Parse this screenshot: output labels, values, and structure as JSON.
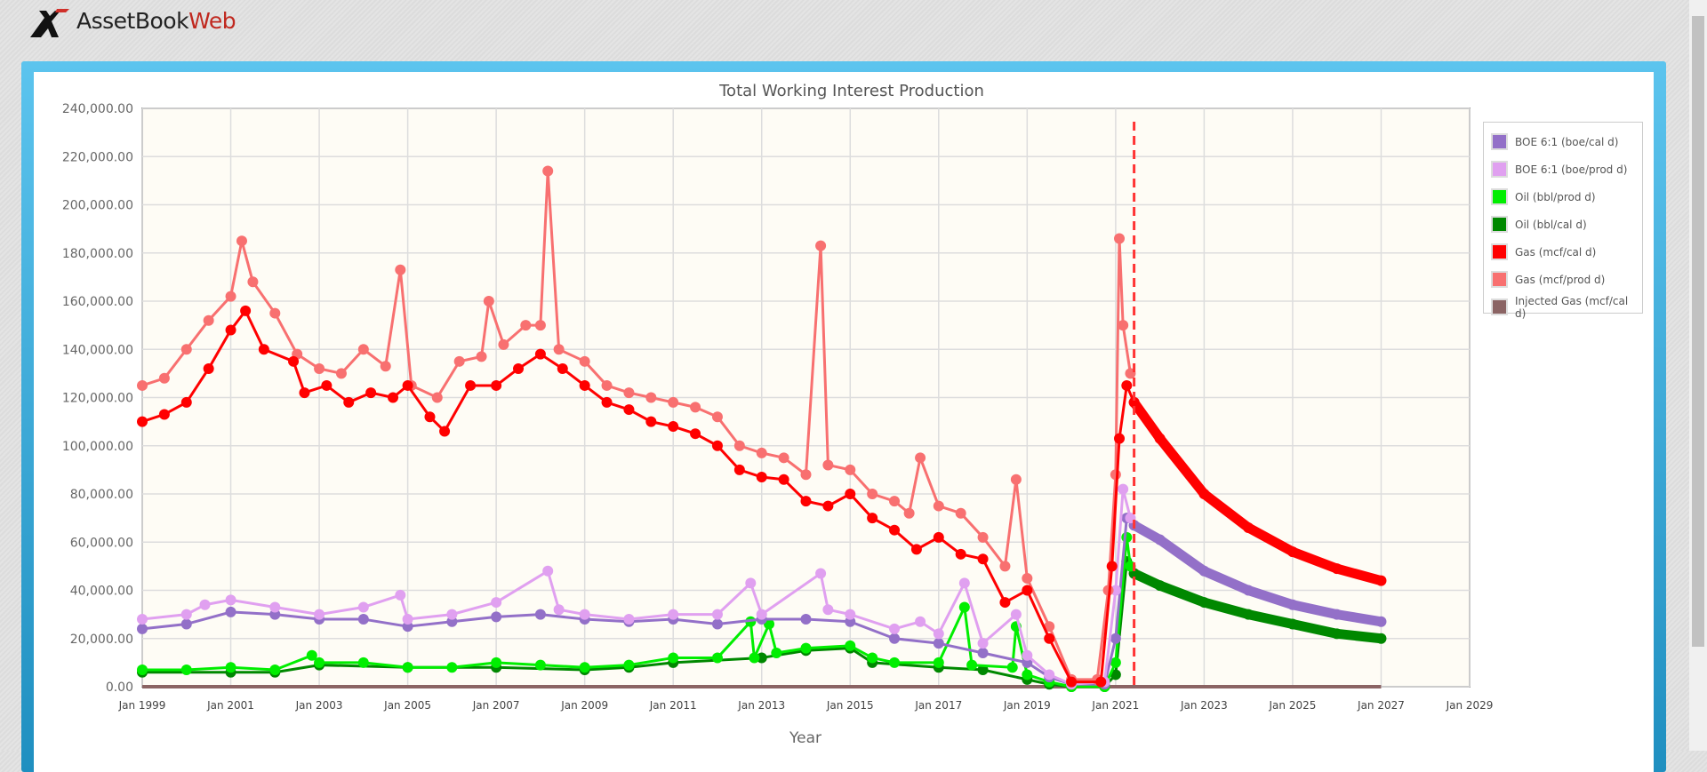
{
  "app": {
    "logo_main": "AssetBook",
    "logo_accent": "Web"
  },
  "chart_data": {
    "type": "line",
    "title": "Total Working Interest Production",
    "xlabel": "Year",
    "ylabel": "",
    "ylim": [
      0,
      240000
    ],
    "xlim": [
      "1999-01",
      "2029-01"
    ],
    "y_ticks": [
      "0.00",
      "20,000.00",
      "40,000.00",
      "60,000.00",
      "80,000.00",
      "100,000.00",
      "120,000.00",
      "140,000.00",
      "160,000.00",
      "180,000.00",
      "200,000.00",
      "220,000.00",
      "240,000.00"
    ],
    "x_ticks": [
      "Jan 1999",
      "Jan 2001",
      "Jan 2003",
      "Jan 2005",
      "Jan 2007",
      "Jan 2009",
      "Jan 2011",
      "Jan 2013",
      "Jan 2015",
      "Jan 2017",
      "Jan 2019",
      "Jan 2021",
      "Jan 2023",
      "Jan 2025",
      "Jan 2027",
      "Jan 2029"
    ],
    "grid": true,
    "legend_position": "right",
    "forecast_marker_date": "2021-06",
    "forecast_marker_color": "#ff3333",
    "series": [
      {
        "name": "BOE 6:1 (boe/cal d)",
        "color": "#9370c8",
        "values": [
          [
            "1999-01",
            24000
          ],
          [
            "2000-01",
            26000
          ],
          [
            "2001-01",
            31000
          ],
          [
            "2002-01",
            30000
          ],
          [
            "2003-01",
            28000
          ],
          [
            "2004-01",
            28000
          ],
          [
            "2005-01",
            25000
          ],
          [
            "2006-01",
            27000
          ],
          [
            "2007-01",
            29000
          ],
          [
            "2008-01",
            30000
          ],
          [
            "2009-01",
            28000
          ],
          [
            "2010-01",
            27000
          ],
          [
            "2011-01",
            28000
          ],
          [
            "2012-01",
            26000
          ],
          [
            "2013-01",
            28000
          ],
          [
            "2014-01",
            28000
          ],
          [
            "2015-01",
            27000
          ],
          [
            "2016-01",
            20000
          ],
          [
            "2017-01",
            18000
          ],
          [
            "2018-01",
            14000
          ],
          [
            "2019-01",
            10000
          ],
          [
            "2019-07",
            4000
          ],
          [
            "2020-01",
            1000
          ],
          [
            "2020-10",
            1000
          ],
          [
            "2021-01",
            20000
          ],
          [
            "2021-04",
            70000
          ],
          [
            "2021-06",
            67000
          ]
        ],
        "forecast": [
          [
            "2021-06",
            67000
          ],
          [
            "2022-01",
            61000
          ],
          [
            "2023-01",
            48000
          ],
          [
            "2024-01",
            40000
          ],
          [
            "2025-01",
            34000
          ],
          [
            "2026-01",
            30000
          ],
          [
            "2027-01",
            27000
          ]
        ]
      },
      {
        "name": "BOE 6:1 (boe/prod d)",
        "color": "#e0a0f0",
        "values": [
          [
            "1999-01",
            28000
          ],
          [
            "2000-01",
            30000
          ],
          [
            "2000-06",
            34000
          ],
          [
            "2001-01",
            36000
          ],
          [
            "2002-01",
            33000
          ],
          [
            "2003-01",
            30000
          ],
          [
            "2004-01",
            33000
          ],
          [
            "2004-11",
            38000
          ],
          [
            "2005-01",
            28000
          ],
          [
            "2006-01",
            30000
          ],
          [
            "2007-01",
            35000
          ],
          [
            "2008-03",
            48000
          ],
          [
            "2008-06",
            32000
          ],
          [
            "2009-01",
            30000
          ],
          [
            "2010-01",
            28000
          ],
          [
            "2011-01",
            30000
          ],
          [
            "2012-01",
            30000
          ],
          [
            "2012-10",
            43000
          ],
          [
            "2013-01",
            30000
          ],
          [
            "2014-05",
            47000
          ],
          [
            "2014-07",
            32000
          ],
          [
            "2015-01",
            30000
          ],
          [
            "2016-01",
            24000
          ],
          [
            "2016-08",
            27000
          ],
          [
            "2017-01",
            22000
          ],
          [
            "2017-08",
            43000
          ],
          [
            "2018-01",
            18000
          ],
          [
            "2018-10",
            30000
          ],
          [
            "2019-01",
            13000
          ],
          [
            "2019-07",
            5000
          ],
          [
            "2020-01",
            1000
          ],
          [
            "2020-10",
            2000
          ],
          [
            "2021-01",
            40000
          ],
          [
            "2021-03",
            82000
          ],
          [
            "2021-05",
            70000
          ]
        ]
      },
      {
        "name": "Oil (bbl/prod d)",
        "color": "#00ee00",
        "values": [
          [
            "1999-01",
            7000
          ],
          [
            "2000-01",
            7000
          ],
          [
            "2001-01",
            8000
          ],
          [
            "2002-01",
            7000
          ],
          [
            "2002-11",
            13000
          ],
          [
            "2003-01",
            10000
          ],
          [
            "2004-01",
            10000
          ],
          [
            "2005-01",
            8000
          ],
          [
            "2006-01",
            8000
          ],
          [
            "2007-01",
            10000
          ],
          [
            "2008-01",
            9000
          ],
          [
            "2009-01",
            8000
          ],
          [
            "2010-01",
            9000
          ],
          [
            "2011-01",
            12000
          ],
          [
            "2012-01",
            12000
          ],
          [
            "2012-10",
            27000
          ],
          [
            "2012-11",
            12000
          ],
          [
            "2013-03",
            26000
          ],
          [
            "2013-05",
            14000
          ],
          [
            "2014-01",
            16000
          ],
          [
            "2015-01",
            17000
          ],
          [
            "2015-07",
            12000
          ],
          [
            "2016-01",
            10000
          ],
          [
            "2017-01",
            10000
          ],
          [
            "2017-08",
            33000
          ],
          [
            "2017-10",
            9000
          ],
          [
            "2018-09",
            8000
          ],
          [
            "2018-10",
            25000
          ],
          [
            "2019-01",
            5000
          ],
          [
            "2019-07",
            2000
          ],
          [
            "2020-01",
            0
          ],
          [
            "2020-10",
            0
          ],
          [
            "2021-01",
            10000
          ],
          [
            "2021-04",
            62000
          ],
          [
            "2021-05",
            50000
          ]
        ]
      },
      {
        "name": "Oil (bbl/cal d)",
        "color": "#008800",
        "values": [
          [
            "1999-01",
            6000
          ],
          [
            "2001-01",
            6000
          ],
          [
            "2002-01",
            6000
          ],
          [
            "2003-01",
            9000
          ],
          [
            "2005-01",
            8000
          ],
          [
            "2007-01",
            8000
          ],
          [
            "2009-01",
            7000
          ],
          [
            "2010-01",
            8000
          ],
          [
            "2011-01",
            10000
          ],
          [
            "2013-01",
            12000
          ],
          [
            "2014-01",
            15000
          ],
          [
            "2015-01",
            16000
          ],
          [
            "2015-07",
            10000
          ],
          [
            "2017-01",
            8000
          ],
          [
            "2018-01",
            7000
          ],
          [
            "2019-01",
            3000
          ],
          [
            "2019-07",
            1000
          ],
          [
            "2020-01",
            0
          ],
          [
            "2020-10",
            0
          ],
          [
            "2021-01",
            5000
          ],
          [
            "2021-04",
            52000
          ],
          [
            "2021-06",
            47000
          ]
        ],
        "forecast": [
          [
            "2021-06",
            47000
          ],
          [
            "2022-01",
            42000
          ],
          [
            "2023-01",
            35000
          ],
          [
            "2024-01",
            30000
          ],
          [
            "2025-01",
            26000
          ],
          [
            "2026-01",
            22000
          ],
          [
            "2027-01",
            20000
          ]
        ]
      },
      {
        "name": "Gas (mcf/cal d)",
        "color": "#ff0000",
        "values": [
          [
            "1999-01",
            110000
          ],
          [
            "1999-07",
            113000
          ],
          [
            "2000-01",
            118000
          ],
          [
            "2000-07",
            132000
          ],
          [
            "2001-01",
            148000
          ],
          [
            "2001-05",
            156000
          ],
          [
            "2001-10",
            140000
          ],
          [
            "2002-06",
            135000
          ],
          [
            "2002-09",
            122000
          ],
          [
            "2003-03",
            125000
          ],
          [
            "2003-09",
            118000
          ],
          [
            "2004-03",
            122000
          ],
          [
            "2004-09",
            120000
          ],
          [
            "2005-01",
            125000
          ],
          [
            "2005-07",
            112000
          ],
          [
            "2005-11",
            106000
          ],
          [
            "2006-06",
            125000
          ],
          [
            "2007-01",
            125000
          ],
          [
            "2007-07",
            132000
          ],
          [
            "2008-01",
            138000
          ],
          [
            "2008-07",
            132000
          ],
          [
            "2009-01",
            125000
          ],
          [
            "2009-07",
            118000
          ],
          [
            "2010-01",
            115000
          ],
          [
            "2010-07",
            110000
          ],
          [
            "2011-01",
            108000
          ],
          [
            "2011-07",
            105000
          ],
          [
            "2012-01",
            100000
          ],
          [
            "2012-07",
            90000
          ],
          [
            "2013-01",
            87000
          ],
          [
            "2013-07",
            86000
          ],
          [
            "2014-01",
            77000
          ],
          [
            "2014-07",
            75000
          ],
          [
            "2015-01",
            80000
          ],
          [
            "2015-07",
            70000
          ],
          [
            "2016-01",
            65000
          ],
          [
            "2016-07",
            57000
          ],
          [
            "2017-01",
            62000
          ],
          [
            "2017-07",
            55000
          ],
          [
            "2018-01",
            53000
          ],
          [
            "2018-07",
            35000
          ],
          [
            "2019-01",
            40000
          ],
          [
            "2019-07",
            20000
          ],
          [
            "2020-01",
            2000
          ],
          [
            "2020-09",
            2000
          ],
          [
            "2020-12",
            50000
          ],
          [
            "2021-02",
            103000
          ],
          [
            "2021-04",
            125000
          ],
          [
            "2021-06",
            118000
          ]
        ],
        "forecast": [
          [
            "2021-06",
            118000
          ],
          [
            "2022-01",
            103000
          ],
          [
            "2023-01",
            80000
          ],
          [
            "2024-01",
            66000
          ],
          [
            "2025-01",
            56000
          ],
          [
            "2026-01",
            49000
          ],
          [
            "2027-01",
            44000
          ]
        ]
      },
      {
        "name": "Gas (mcf/prod d)",
        "color": "#f87070",
        "values": [
          [
            "1999-01",
            125000
          ],
          [
            "1999-07",
            128000
          ],
          [
            "2000-01",
            140000
          ],
          [
            "2000-07",
            152000
          ],
          [
            "2001-01",
            162000
          ],
          [
            "2001-04",
            185000
          ],
          [
            "2001-07",
            168000
          ],
          [
            "2002-01",
            155000
          ],
          [
            "2002-07",
            138000
          ],
          [
            "2003-01",
            132000
          ],
          [
            "2003-07",
            130000
          ],
          [
            "2004-01",
            140000
          ],
          [
            "2004-07",
            133000
          ],
          [
            "2004-11",
            173000
          ],
          [
            "2005-02",
            125000
          ],
          [
            "2005-09",
            120000
          ],
          [
            "2006-03",
            135000
          ],
          [
            "2006-09",
            137000
          ],
          [
            "2006-11",
            160000
          ],
          [
            "2007-03",
            142000
          ],
          [
            "2007-09",
            150000
          ],
          [
            "2008-01",
            150000
          ],
          [
            "2008-03",
            214000
          ],
          [
            "2008-06",
            140000
          ],
          [
            "2009-01",
            135000
          ],
          [
            "2009-07",
            125000
          ],
          [
            "2010-01",
            122000
          ],
          [
            "2010-07",
            120000
          ],
          [
            "2011-01",
            118000
          ],
          [
            "2011-07",
            116000
          ],
          [
            "2012-01",
            112000
          ],
          [
            "2012-07",
            100000
          ],
          [
            "2013-01",
            97000
          ],
          [
            "2013-07",
            95000
          ],
          [
            "2014-01",
            88000
          ],
          [
            "2014-05",
            183000
          ],
          [
            "2014-07",
            92000
          ],
          [
            "2015-01",
            90000
          ],
          [
            "2015-07",
            80000
          ],
          [
            "2016-01",
            77000
          ],
          [
            "2016-05",
            72000
          ],
          [
            "2016-08",
            95000
          ],
          [
            "2017-01",
            75000
          ],
          [
            "2017-07",
            72000
          ],
          [
            "2018-01",
            62000
          ],
          [
            "2018-07",
            50000
          ],
          [
            "2018-10",
            86000
          ],
          [
            "2019-01",
            45000
          ],
          [
            "2019-07",
            25000
          ],
          [
            "2020-01",
            3000
          ],
          [
            "2020-08",
            3000
          ],
          [
            "2020-11",
            40000
          ],
          [
            "2021-01",
            88000
          ],
          [
            "2021-02",
            186000
          ],
          [
            "2021-03",
            150000
          ],
          [
            "2021-05",
            130000
          ]
        ]
      },
      {
        "name": "Injected Gas (mcf/cal d)",
        "color": "#8b6464",
        "values": [
          [
            "1999-01",
            0
          ],
          [
            "2027-01",
            0
          ]
        ]
      }
    ]
  }
}
